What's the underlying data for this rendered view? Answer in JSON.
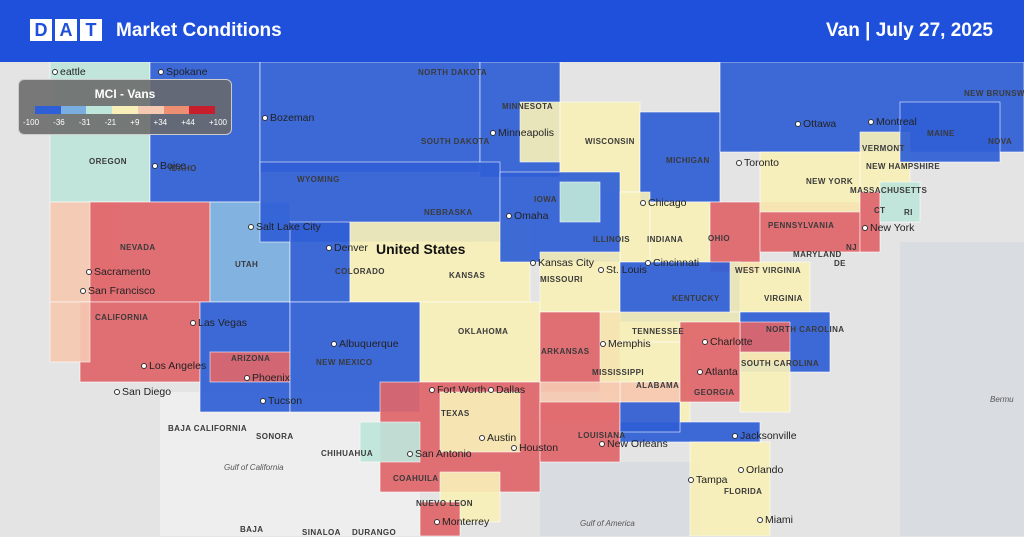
{
  "header": {
    "logo": [
      "D",
      "A",
      "T"
    ],
    "title": "Market Conditions",
    "equipment": "Van",
    "separator": "|",
    "date": "July 27, 2025"
  },
  "legend": {
    "title": "MCI - Vans",
    "colors": [
      "#2f5fd6",
      "#7aaee0",
      "#bfe6da",
      "#f8f0b8",
      "#f6c9b2",
      "#ee8f73",
      "#c81e2c"
    ],
    "labels": [
      "-100",
      "-36",
      "-31",
      "-21",
      "+9",
      "+34",
      "+44",
      "+100"
    ]
  },
  "map": {
    "country": "United States",
    "cities": [
      "eattle",
      "Spokane",
      "Bozeman",
      "Boise",
      "Minneapolis",
      "Ottawa",
      "Montreal",
      "Toronto",
      "Chicago",
      "New York",
      "Salt Lake City",
      "Denver",
      "Omaha",
      "Kansas City",
      "St. Louis",
      "Cincinnati",
      "Sacramento",
      "San Francisco",
      "Las Vegas",
      "Los Angeles",
      "Phoenix",
      "San Diego",
      "Tucson",
      "Albuquerque",
      "Fort Worth",
      "Dallas",
      "Memphis",
      "Charlotte",
      "Atlanta",
      "Austin",
      "Houston",
      "San Antonio",
      "New Orleans",
      "Jacksonville",
      "Orlando",
      "Tampa",
      "Miami",
      "Monterrey"
    ],
    "regions": [
      "NORTH DAKOTA",
      "MINNESOTA",
      "WISCONSIN",
      "MICHIGAN",
      "SOUTH DAKOTA",
      "OREGON",
      "IDAHO",
      "WYOMING",
      "NEBRASKA",
      "IOWA",
      "ILLINOIS",
      "INDIANA",
      "OHIO",
      "PENNSYLVANIA",
      "NEW YORK",
      "VERMONT",
      "NEW HAMPSHIRE",
      "MAINE",
      "MASSACHUSETTS",
      "CT",
      "RI",
      "NJ",
      "DE",
      "MARYLAND",
      "WEST VIRGINIA",
      "VIRGINIA",
      "KENTUCKY",
      "TENNESSEE",
      "NORTH CAROLINA",
      "SOUTH CAROLINA",
      "GEORGIA",
      "ALABAMA",
      "MISSISSIPPI",
      "LOUISIANA",
      "ARKANSAS",
      "MISSOURI",
      "KANSAS",
      "OKLAHOMA",
      "TEXAS",
      "NEW MEXICO",
      "ARIZONA",
      "COLORADO",
      "UTAH",
      "NEVADA",
      "CALIFORNIA",
      "FLORIDA",
      "NEW BRUNSWICK",
      "NOVA",
      "BAJA CALIFORNIA",
      "SONORA",
      "CHIHUAHUA",
      "COAHUILA",
      "NUEVO LEON",
      "SINALOA",
      "DURANGO",
      "BAJA"
    ],
    "water": [
      "Gulf of California",
      "Gulf of America",
      "Bermu"
    ]
  }
}
